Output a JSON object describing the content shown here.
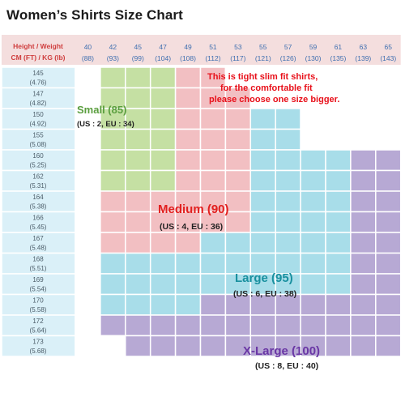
{
  "chart_data": {
    "type": "table",
    "title": "Women’s Shirts Size Chart",
    "corner_label": {
      "line1": "Height / Weight",
      "line2": "CM (FT) / KG (lb)"
    },
    "weight_columns": [
      {
        "kg": "40",
        "lb": "(88)"
      },
      {
        "kg": "42",
        "lb": "(93)"
      },
      {
        "kg": "45",
        "lb": "(99)"
      },
      {
        "kg": "47",
        "lb": "(104)"
      },
      {
        "kg": "49",
        "lb": "(108)"
      },
      {
        "kg": "51",
        "lb": "(112)"
      },
      {
        "kg": "53",
        "lb": "(117)"
      },
      {
        "kg": "55",
        "lb": "(121)"
      },
      {
        "kg": "57",
        "lb": "(126)"
      },
      {
        "kg": "59",
        "lb": "(130)"
      },
      {
        "kg": "61",
        "lb": "(135)"
      },
      {
        "kg": "63",
        "lb": "(139)"
      },
      {
        "kg": "65",
        "lb": "(143)"
      }
    ],
    "height_rows": [
      {
        "cm": "145",
        "ft": "(4.76)"
      },
      {
        "cm": "147",
        "ft": "(4.82)"
      },
      {
        "cm": "150",
        "ft": "(4.92)"
      },
      {
        "cm": "155",
        "ft": "(5.08)"
      },
      {
        "cm": "160",
        "ft": "(5.25)"
      },
      {
        "cm": "162",
        "ft": "(5.31)"
      },
      {
        "cm": "164",
        "ft": "(5.38)"
      },
      {
        "cm": "166",
        "ft": "(5.45)"
      },
      {
        "cm": "167",
        "ft": "(5.48)"
      },
      {
        "cm": "168",
        "ft": "(5.51)"
      },
      {
        "cm": "169",
        "ft": "(5.54)"
      },
      {
        "cm": "170",
        "ft": "(5.58)"
      },
      {
        "cm": "172",
        "ft": "(5.64)"
      },
      {
        "cm": "173",
        "ft": "(5.68)"
      }
    ],
    "size_grid": [
      [
        "",
        "S",
        "S",
        "S",
        "M",
        "M",
        "",
        "",
        "",
        "",
        "",
        "",
        ""
      ],
      [
        "",
        "S",
        "S",
        "S",
        "M",
        "M",
        "M",
        "",
        "",
        "",
        "",
        "",
        ""
      ],
      [
        "",
        "S",
        "S",
        "S",
        "M",
        "M",
        "M",
        "L",
        "L",
        "",
        "",
        "",
        ""
      ],
      [
        "",
        "S",
        "S",
        "S",
        "M",
        "M",
        "M",
        "L",
        "L",
        "",
        "",
        "",
        ""
      ],
      [
        "",
        "S",
        "S",
        "S",
        "M",
        "M",
        "M",
        "L",
        "L",
        "L",
        "L",
        "XL",
        "XL"
      ],
      [
        "",
        "S",
        "S",
        "S",
        "M",
        "M",
        "M",
        "L",
        "L",
        "L",
        "L",
        "XL",
        "XL"
      ],
      [
        "",
        "M",
        "M",
        "M",
        "M",
        "M",
        "M",
        "L",
        "L",
        "L",
        "L",
        "XL",
        "XL"
      ],
      [
        "",
        "M",
        "M",
        "M",
        "M",
        "M",
        "M",
        "L",
        "L",
        "L",
        "L",
        "XL",
        "XL"
      ],
      [
        "",
        "M",
        "M",
        "M",
        "M",
        "L",
        "L",
        "L",
        "L",
        "L",
        "L",
        "XL",
        "XL"
      ],
      [
        "",
        "L",
        "L",
        "L",
        "L",
        "L",
        "L",
        "L",
        "L",
        "L",
        "L",
        "XL",
        "XL"
      ],
      [
        "",
        "L",
        "L",
        "L",
        "L",
        "L",
        "L",
        "L",
        "L",
        "L",
        "L",
        "XL",
        "XL"
      ],
      [
        "",
        "L",
        "L",
        "L",
        "L",
        "XL",
        "XL",
        "XL",
        "XL",
        "XL",
        "XL",
        "XL",
        "XL"
      ],
      [
        "",
        "XL",
        "XL",
        "XL",
        "XL",
        "XL",
        "XL",
        "XL",
        "XL",
        "XL",
        "XL",
        "XL",
        "XL"
      ],
      [
        "",
        "",
        "XL",
        "XL",
        "XL",
        "XL",
        "XL",
        "XL",
        "XL",
        "XL",
        "XL",
        "XL",
        "XL"
      ]
    ],
    "sizes": [
      {
        "code": "S",
        "name": "Small (85)",
        "note": "(US : 2, EU : 34)",
        "color": "#c5e0a3",
        "label_color": "#5a9e3e"
      },
      {
        "code": "M",
        "name": "Medium (90)",
        "note": "(US : 4, EU : 36)",
        "color": "#f2bfc2",
        "label_color": "#e2201f"
      },
      {
        "code": "L",
        "name": "Large (95)",
        "note": "(US : 6, EU : 38)",
        "color": "#a8dde9",
        "label_color": "#19909f"
      },
      {
        "code": "XL",
        "name": "X-Large (100)",
        "note": "(US : 8, EU : 40)",
        "color": "#b7a9d4",
        "label_color": "#6a37a5"
      }
    ],
    "notice": [
      "This is tight slim fit shirts,",
      "for the comfortable fit",
      "please choose one size bigger."
    ],
    "colors": {
      "header_bg": "#f4dede",
      "header_text": "#3f6fb0",
      "corner_text": "#cf3e3e",
      "height_col_bg": "#daf0f8",
      "height_text": "#4b5c68",
      "notice_text": "#e8101a",
      "note_text": "#222222",
      "grid_line": "#ffffff"
    }
  }
}
